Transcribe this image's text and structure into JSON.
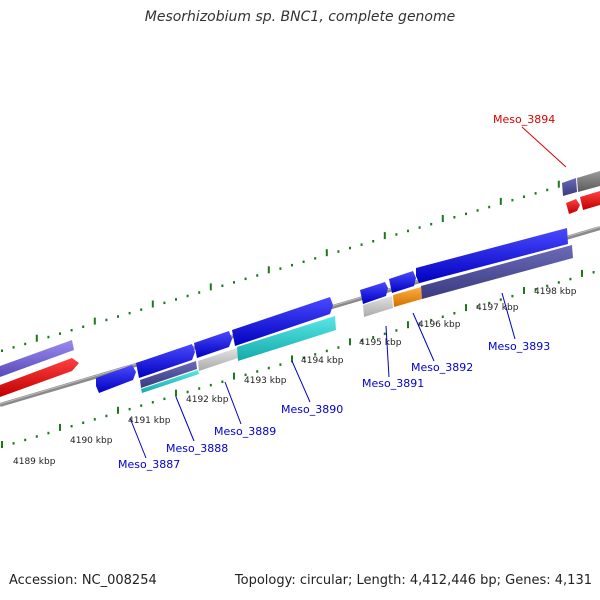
{
  "title": "Mesorhizobium sp. BNC1, complete genome",
  "footer": {
    "accession": "Accession: NC_008254",
    "stats": "Topology: circular; Length: 4,412,446 bp; Genes: 4,131"
  },
  "ticks": [
    {
      "label": "4189 kbp"
    },
    {
      "label": "4190 kbp"
    },
    {
      "label": "4191 kbp"
    },
    {
      "label": "4192 kbp"
    },
    {
      "label": "4193 kbp"
    },
    {
      "label": "4194 kbp"
    },
    {
      "label": "4195 kbp"
    },
    {
      "label": "4196 kbp"
    },
    {
      "label": "4197 kbp"
    },
    {
      "label": "4198 kbp"
    }
  ],
  "genes": [
    {
      "name": "Meso_3887",
      "color": "#0000cc"
    },
    {
      "name": "Meso_3888",
      "color": "#0000cc"
    },
    {
      "name": "Meso_3889",
      "color": "#0000cc"
    },
    {
      "name": "Meso_3890",
      "color": "#0000cc"
    },
    {
      "name": "Meso_3891",
      "color": "#0000cc"
    },
    {
      "name": "Meso_3892",
      "color": "#0000cc"
    },
    {
      "name": "Meso_3893",
      "color": "#0000cc"
    },
    {
      "name": "Meso_3894",
      "color": "#dd0000"
    }
  ],
  "colors": {
    "backbone": "#8a8a8a",
    "ticks": "#1a7a1a",
    "cds_blue": "#1010dd",
    "cds_navy": "#4a4a9a",
    "cds_cyan": "#22c8c8",
    "cds_grey": "#c8c8c8",
    "cds_orange": "#f08c10",
    "cds_red": "#ee1010",
    "cds_lavender": "#7a6ad8",
    "label_blue": "#0000cc",
    "label_red": "#dd0000"
  }
}
